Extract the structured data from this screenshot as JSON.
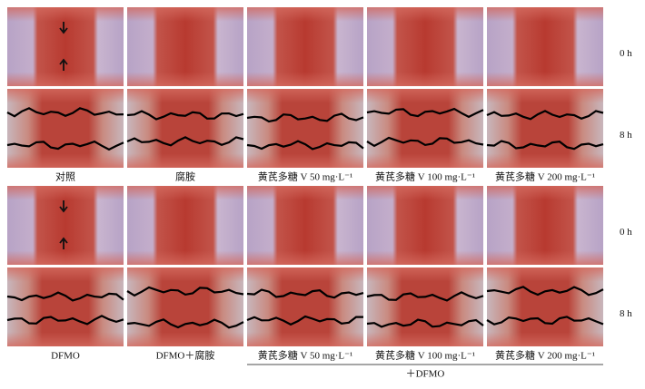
{
  "panels": [
    {
      "columns": [
        "对照",
        "腐胺",
        "黄芪多糖 V 50 mg·L⁻¹",
        "黄芪多糖 V 100 mg·L⁻¹",
        "黄芪多糖 V 200 mg·L⁻¹"
      ],
      "rows": [
        "0 h",
        "8 h"
      ]
    },
    {
      "columns": [
        "DFMO",
        "DFMO＋腐胺",
        "黄芪多糖 V 50 mg·L⁻¹",
        "黄芪多糖 V 100 mg·L⁻¹",
        "黄芪多糖 V 200 mg·L⁻¹"
      ],
      "rows": [
        "0 h",
        "8 h"
      ],
      "group_label": "＋DFMO"
    }
  ]
}
